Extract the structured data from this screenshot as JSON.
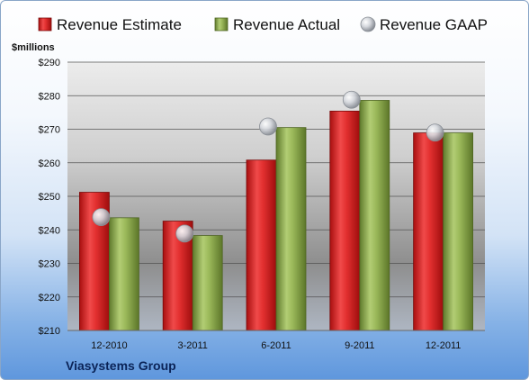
{
  "chart_data": {
    "type": "bar",
    "categories": [
      "12-2010",
      "3-2011",
      "6-2011",
      "9-2011",
      "12-2011"
    ],
    "series": [
      {
        "name": "Revenue Estimate",
        "kind": "bar",
        "color": "#d42a2a",
        "values": [
          251.2,
          242.6,
          260.8,
          275.4,
          268.9
        ]
      },
      {
        "name": "Revenue Actual",
        "kind": "bar",
        "color": "#8fae4e",
        "values": [
          243.6,
          238.3,
          270.5,
          278.6,
          268.9
        ]
      },
      {
        "name": "Revenue GAAP",
        "kind": "marker",
        "color": "#c9ccd2",
        "values": [
          243.8,
          238.9,
          270.8,
          278.8,
          269.0
        ]
      }
    ],
    "yunit": "$millions",
    "yticks": [
      "$210",
      "$220",
      "$230",
      "$240",
      "$250",
      "$260",
      "$270",
      "$280",
      "$290"
    ],
    "ylim": [
      210,
      290
    ],
    "grid": true,
    "legend_position": "top",
    "footer": "Viasystems Group"
  }
}
